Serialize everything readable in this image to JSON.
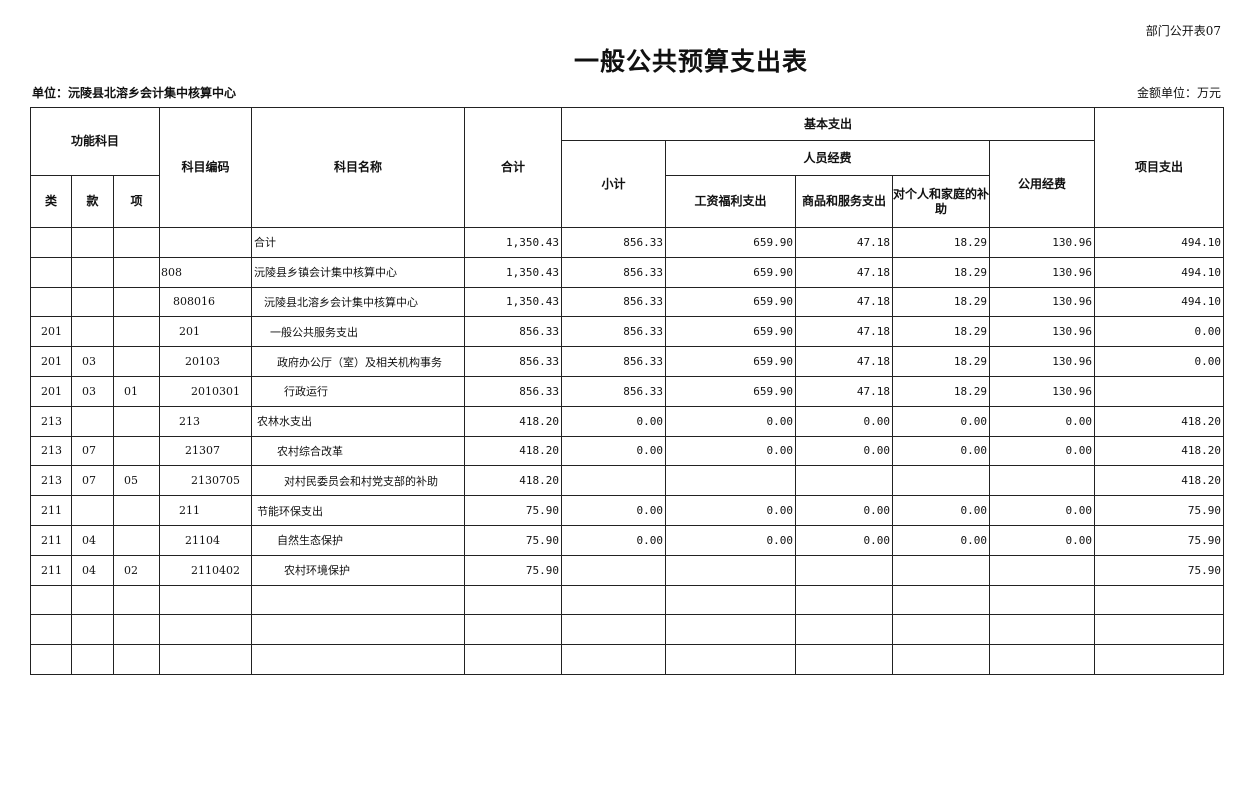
{
  "form_no": "部门公开表07",
  "title": "一般公共预算支出表",
  "unit_label": "单位：沅陵县北溶乡会计集中核算中心",
  "money_unit": "金额单位：万元",
  "headers": {
    "function_subject": "功能科目",
    "lei": "类",
    "kuan": "款",
    "xiang": "项",
    "code": "科目编码",
    "name": "科目名称",
    "total": "合计",
    "basic": "基本支出",
    "subtotal": "小计",
    "personnel": "人员经费",
    "wages": "工资福利支出",
    "goods": "商品和服务支出",
    "subsidy": "对个人和家庭的补助",
    "public": "公用经费",
    "project": "项目支出"
  },
  "rows": [
    {
      "lei": "",
      "kuan": "",
      "xiang": "",
      "code": "",
      "name": "合计",
      "total": "1,350.43",
      "subtotal": "856.33",
      "wages": "659.90",
      "goods": "47.18",
      "subsidy": "18.29",
      "public": "130.96",
      "project": "494.10"
    },
    {
      "lei": "",
      "kuan": "",
      "xiang": "",
      "code": "808",
      "name": "沅陵县乡镇会计集中核算中心",
      "total": "1,350.43",
      "subtotal": "856.33",
      "wages": "659.90",
      "goods": "47.18",
      "subsidy": "18.29",
      "public": "130.96",
      "project": "494.10"
    },
    {
      "lei": "",
      "kuan": "",
      "xiang": "",
      "code": "808016",
      "name": "沅陵县北溶乡会计集中核算中心",
      "total": "1,350.43",
      "subtotal": "856.33",
      "wages": "659.90",
      "goods": "47.18",
      "subsidy": "18.29",
      "public": "130.96",
      "project": "494.10"
    },
    {
      "lei": "201",
      "kuan": "",
      "xiang": "",
      "code": "201",
      "name": "一般公共服务支出",
      "total": "856.33",
      "subtotal": "856.33",
      "wages": "659.90",
      "goods": "47.18",
      "subsidy": "18.29",
      "public": "130.96",
      "project": "0.00"
    },
    {
      "lei": "201",
      "kuan": "03",
      "xiang": "",
      "code": "20103",
      "name": "政府办公厅（室）及相关机构事务",
      "total": "856.33",
      "subtotal": "856.33",
      "wages": "659.90",
      "goods": "47.18",
      "subsidy": "18.29",
      "public": "130.96",
      "project": "0.00"
    },
    {
      "lei": "201",
      "kuan": "03",
      "xiang": "01",
      "code": "2010301",
      "name": "行政运行",
      "total": "856.33",
      "subtotal": "856.33",
      "wages": "659.90",
      "goods": "47.18",
      "subsidy": "18.29",
      "public": "130.96",
      "project": ""
    },
    {
      "lei": "213",
      "kuan": "",
      "xiang": "",
      "code": "213",
      "name": "农林水支出",
      "total": "418.20",
      "subtotal": "0.00",
      "wages": "0.00",
      "goods": "0.00",
      "subsidy": "0.00",
      "public": "0.00",
      "project": "418.20"
    },
    {
      "lei": "213",
      "kuan": "07",
      "xiang": "",
      "code": "21307",
      "name": "农村综合改革",
      "total": "418.20",
      "subtotal": "0.00",
      "wages": "0.00",
      "goods": "0.00",
      "subsidy": "0.00",
      "public": "0.00",
      "project": "418.20"
    },
    {
      "lei": "213",
      "kuan": "07",
      "xiang": "05",
      "code": "2130705",
      "name": "对村民委员会和村党支部的补助",
      "total": "418.20",
      "subtotal": "",
      "wages": "",
      "goods": "",
      "subsidy": "",
      "public": "",
      "project": "418.20"
    },
    {
      "lei": "211",
      "kuan": "",
      "xiang": "",
      "code": "211",
      "name": "节能环保支出",
      "total": "75.90",
      "subtotal": "0.00",
      "wages": "0.00",
      "goods": "0.00",
      "subsidy": "0.00",
      "public": "0.00",
      "project": "75.90"
    },
    {
      "lei": "211",
      "kuan": "04",
      "xiang": "",
      "code": "21104",
      "name": "自然生态保护",
      "total": "75.90",
      "subtotal": "0.00",
      "wages": "0.00",
      "goods": "0.00",
      "subsidy": "0.00",
      "public": "0.00",
      "project": "75.90"
    },
    {
      "lei": "211",
      "kuan": "04",
      "xiang": "02",
      "code": "2110402",
      "name": "农村环境保护",
      "total": "75.90",
      "subtotal": "",
      "wages": "",
      "goods": "",
      "subsidy": "",
      "public": "",
      "project": "75.90"
    },
    {
      "lei": "",
      "kuan": "",
      "xiang": "",
      "code": "",
      "name": "",
      "total": "",
      "subtotal": "",
      "wages": "",
      "goods": "",
      "subsidy": "",
      "public": "",
      "project": ""
    },
    {
      "lei": "",
      "kuan": "",
      "xiang": "",
      "code": "",
      "name": "",
      "total": "",
      "subtotal": "",
      "wages": "",
      "goods": "",
      "subsidy": "",
      "public": "",
      "project": ""
    },
    {
      "lei": "",
      "kuan": "",
      "xiang": "",
      "code": "",
      "name": "",
      "total": "",
      "subtotal": "",
      "wages": "",
      "goods": "",
      "subsidy": "",
      "public": "",
      "project": ""
    }
  ]
}
